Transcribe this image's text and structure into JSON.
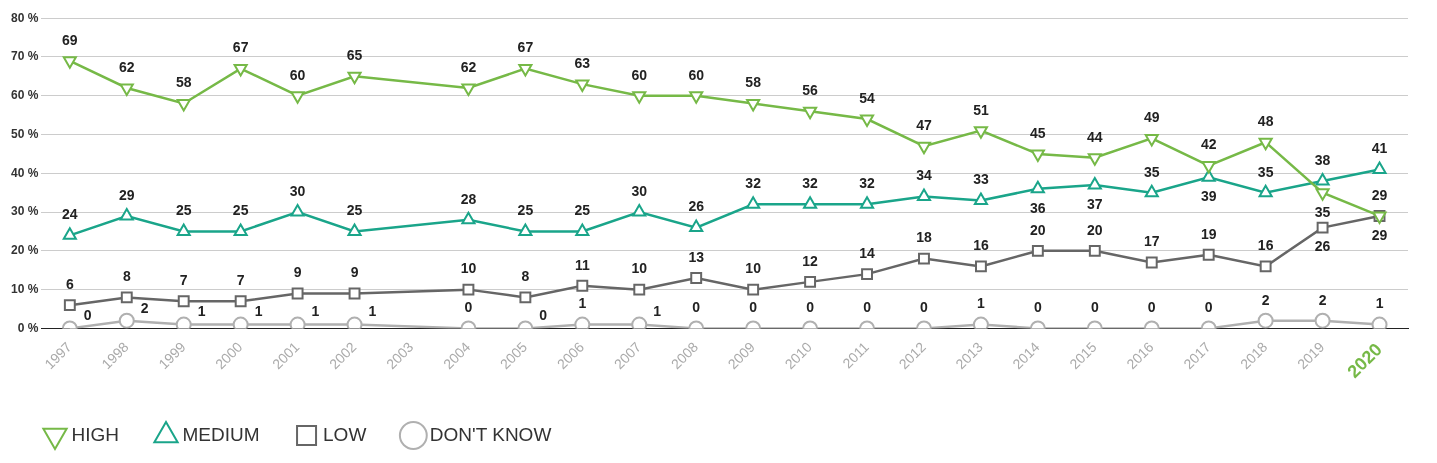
{
  "chart_data": {
    "type": "line",
    "categories": [
      "1997",
      "1998",
      "1999",
      "2000",
      "2001",
      "2002",
      "2003",
      "2004",
      "2005",
      "2006",
      "2007",
      "2008",
      "2009",
      "2010",
      "2011",
      "2012",
      "2013",
      "2014",
      "2015",
      "2016",
      "2017",
      "2018",
      "2019",
      "2020"
    ],
    "series": [
      {
        "name": "HIGH",
        "color": "#76b947",
        "marker": "triangle",
        "values": [
          69,
          62,
          58,
          67,
          60,
          65,
          null,
          62,
          67,
          63,
          60,
          60,
          58,
          56,
          54,
          47,
          51,
          45,
          44,
          49,
          42,
          48,
          35,
          29
        ]
      },
      {
        "name": "MEDIUM",
        "color": "#1aa58a",
        "marker": "triangle",
        "values": [
          24,
          29,
          25,
          25,
          30,
          25,
          null,
          28,
          25,
          25,
          30,
          26,
          32,
          32,
          32,
          34,
          33,
          36,
          37,
          35,
          39,
          35,
          38,
          41
        ]
      },
      {
        "name": "LOW",
        "color": "#666666",
        "marker": "square",
        "values": [
          6,
          8,
          7,
          7,
          9,
          9,
          null,
          10,
          8,
          11,
          10,
          13,
          10,
          12,
          14,
          18,
          16,
          20,
          20,
          17,
          19,
          16,
          26,
          29
        ]
      },
      {
        "name": "DON'T KNOW",
        "color": "#b0b0b0",
        "marker": "circle",
        "values": [
          0,
          2,
          1,
          1,
          1,
          1,
          null,
          0,
          0,
          1,
          1,
          0,
          0,
          0,
          0,
          0,
          1,
          0,
          0,
          0,
          0,
          2,
          2,
          1
        ]
      }
    ],
    "ylim": [
      0,
      80
    ],
    "yticks": [
      {
        "value": 0,
        "label": "0 %"
      },
      {
        "value": 10,
        "label": "10 %"
      },
      {
        "value": 20,
        "label": "20 %"
      },
      {
        "value": 30,
        "label": "30 %"
      },
      {
        "value": 40,
        "label": "40 %"
      },
      {
        "value": 50,
        "label": "50 %"
      },
      {
        "value": 60,
        "label": "60 %"
      },
      {
        "value": 70,
        "label": "70 %"
      },
      {
        "value": 80,
        "label": "80 %"
      }
    ],
    "grid": "y",
    "legend": "bottom left",
    "data_labels": true,
    "line_style": "solid"
  }
}
